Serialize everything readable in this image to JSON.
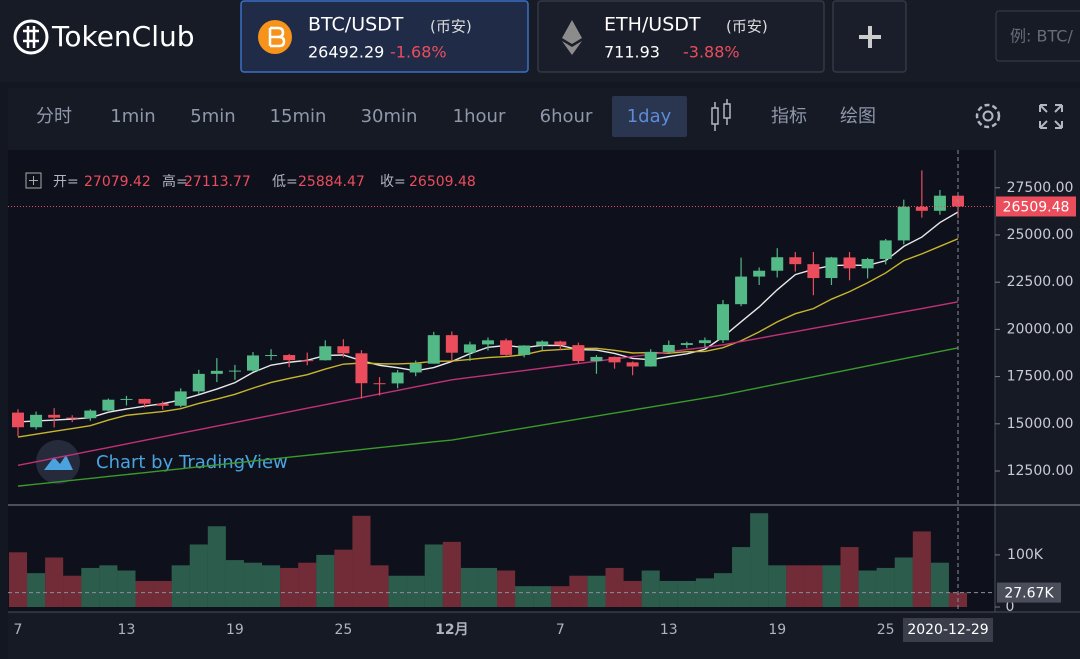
{
  "header": {
    "logo": "TokenClub",
    "tabs": [
      {
        "pair": "BTC/USDT",
        "exchange": "(币安)",
        "price": "26492.29",
        "change": "-1.68%"
      },
      {
        "pair": "ETH/USDT",
        "exchange": "(币安)",
        "price": "711.93",
        "change": "-3.88%"
      }
    ],
    "search_placeholder": "例: BTC/"
  },
  "toolbar": {
    "items": [
      "分时",
      "1min",
      "5min",
      "15min",
      "30min",
      "1hour",
      "6hour",
      "1day",
      "指标",
      "绘图"
    ],
    "active": "1day"
  },
  "chart_data": {
    "type": "candlestick",
    "ohlc_labels": [
      "开=",
      "高=",
      "低=",
      "收="
    ],
    "watermark": "Chart by TradingView",
    "up_color": "#53b987",
    "down_color": "#eb4d5c",
    "categories": [
      "7",
      null,
      null,
      null,
      null,
      null,
      "13",
      null,
      null,
      null,
      null,
      null,
      "19",
      null,
      null,
      null,
      null,
      null,
      "25",
      null,
      null,
      null,
      null,
      null,
      "12月",
      null,
      null,
      null,
      null,
      null,
      "7",
      null,
      null,
      null,
      null,
      null,
      "13",
      null,
      null,
      null,
      null,
      null,
      "19",
      null,
      null,
      null,
      null,
      null,
      "25",
      null,
      null,
      null,
      null
    ],
    "crosshair_label": "2020-12-29",
    "open": [
      15593,
      14818,
      15475,
      15328,
      15297,
      15701,
      16276,
      16317,
      16068,
      15955,
      16716,
      17645,
      17804,
      17817,
      18621,
      18642,
      18370,
      18365,
      19107,
      18732,
      17150,
      17139,
      17719,
      18185,
      19695,
      18765,
      19205,
      19422,
      18650,
      19147,
      19359,
      19166,
      18324,
      18541,
      18254,
      18036,
      18808,
      19175,
      19273,
      19426,
      21335,
      22797,
      23107,
      23821,
      23455,
      22719,
      23810,
      23232,
      23729,
      24712,
      26493,
      26281,
      27079.42
    ],
    "high": [
      15770,
      15650,
      15830,
      15450,
      15770,
      16340,
      16480,
      16330,
      16180,
      16880,
      17860,
      18480,
      18120,
      18800,
      18950,
      18700,
      18770,
      19420,
      19480,
      18900,
      17470,
      17850,
      18350,
      19870,
      19890,
      19350,
      19570,
      19520,
      19160,
      19420,
      19400,
      19300,
      18640,
      18560,
      18300,
      18950,
      19410,
      19350,
      19570,
      21560,
      23800,
      23280,
      24300,
      24100,
      24100,
      23840,
      24100,
      23790,
      24790,
      26870,
      28420,
      27380,
      27113.77
    ],
    "low": [
      14340,
      14700,
      14810,
      15090,
      15160,
      15680,
      15970,
      15850,
      15750,
      15880,
      16560,
      17210,
      17330,
      17740,
      18370,
      18000,
      18100,
      18350,
      18520,
      16340,
      16500,
      16880,
      17520,
      18180,
      18330,
      18330,
      18880,
      18600,
      18520,
      18900,
      18910,
      18200,
      17650,
      17920,
      17570,
      18020,
      18700,
      19000,
      19060,
      19280,
      21230,
      22350,
      22750,
      23060,
      21810,
      22350,
      22600,
      22700,
      23440,
      24500,
      25920,
      26070,
      25884.47
    ],
    "close": [
      14818,
      15475,
      15328,
      15297,
      15701,
      16276,
      16317,
      16068,
      15955,
      16716,
      17645,
      17804,
      17817,
      18621,
      18642,
      18370,
      18365,
      19107,
      18732,
      17150,
      17139,
      17719,
      18185,
      19695,
      18765,
      19205,
      19422,
      18650,
      19147,
      19359,
      19166,
      18324,
      18541,
      18254,
      18036,
      18808,
      19175,
      19273,
      19426,
      21335,
      22797,
      23107,
      23821,
      23455,
      22719,
      23810,
      23232,
      23729,
      24712,
      26493,
      26281,
      27079.42,
      26509.48
    ],
    "volume": [
      105000,
      65000,
      95000,
      60000,
      75000,
      80000,
      70000,
      50000,
      50000,
      80000,
      120000,
      155000,
      90000,
      85000,
      80000,
      75000,
      85000,
      100000,
      110000,
      175000,
      80000,
      60000,
      60000,
      120000,
      125000,
      75000,
      75000,
      70000,
      40000,
      40000,
      40000,
      60000,
      60000,
      75000,
      50000,
      70000,
      50000,
      50000,
      55000,
      65000,
      115000,
      180000,
      80000,
      80000,
      80000,
      80000,
      115000,
      70000,
      75000,
      95000,
      145000,
      85000,
      27670
    ],
    "last_volume_label": {
      "value": 27670,
      "label": "27.67K"
    },
    "moving_averages": [
      {
        "color": "#e8e8e8",
        "values": [
          15100,
          15150,
          15200,
          15250,
          15324,
          15615,
          15784,
          15932,
          16063,
          16266,
          16540,
          16838,
          17181,
          17721,
          18106,
          18260,
          18363,
          18621,
          18643,
          18345,
          18099,
          17969,
          17806,
          17978,
          18301,
          18714,
          19054,
          19147,
          19038,
          19157,
          19149,
          18929,
          18907,
          18729,
          18464,
          18393,
          18563,
          18709,
          18944,
          19603,
          20401,
          21188,
          22097,
          22903,
          23180,
          23382,
          23409,
          23389,
          23640,
          24395,
          24889,
          25659,
          26215
        ]
      },
      {
        "color": "#c9b52c",
        "values": [
          14300,
          14450,
          14600,
          14750,
          14900,
          15200,
          15450,
          15550,
          15650,
          15800,
          16080,
          16310,
          16560,
          16890,
          17190,
          17400,
          17600,
          17900,
          18160,
          18220,
          18180,
          18170,
          18210,
          18310,
          18320,
          18410,
          18510,
          18560,
          18660,
          18870,
          18930,
          18990,
          19000,
          18890,
          18750,
          18770,
          18740,
          18820,
          18830,
          19030,
          19400,
          19870,
          20400,
          20830,
          21100,
          21600,
          22000,
          22470,
          22990,
          23640,
          24000,
          24400,
          24800
        ]
      },
      {
        "color": "#c2307a",
        "values": [
          12800,
          12989,
          13178,
          13367,
          13556,
          13745,
          13934,
          14123,
          14312,
          14501,
          14690,
          14879,
          15068,
          15257,
          15446,
          15635,
          15824,
          16013,
          16202,
          16391,
          16580,
          16769,
          16958,
          17147,
          17330,
          17453,
          17576,
          17699,
          17822,
          17945,
          18068,
          18191,
          18314,
          18437,
          18560,
          18683,
          18806,
          18929,
          19052,
          19180,
          19355,
          19530,
          19705,
          19880,
          20055,
          20230,
          20405,
          20580,
          20755,
          20930,
          21105,
          21280,
          21460
        ]
      },
      {
        "color": "#3a9a2c",
        "values": [
          11700,
          11802,
          11904,
          12006,
          12108,
          12210,
          12312,
          12414,
          12516,
          12618,
          12720,
          12822,
          12924,
          13026,
          13128,
          13230,
          13332,
          13434,
          13536,
          13638,
          13740,
          13842,
          13944,
          14046,
          14140,
          14299,
          14458,
          14617,
          14776,
          14935,
          15094,
          15253,
          15412,
          15571,
          15730,
          15889,
          16048,
          16207,
          16366,
          16530,
          16722,
          16914,
          17106,
          17298,
          17490,
          17682,
          17874,
          18066,
          18258,
          18450,
          18642,
          18834,
          19020
        ]
      }
    ],
    "ylim": [
      10700,
      29500
    ],
    "yticks": [
      {
        "value": 12500,
        "label": "12500.00"
      },
      {
        "value": 15000,
        "label": "15000.00"
      },
      {
        "value": 17500,
        "label": "17500.00"
      },
      {
        "value": 20000,
        "label": "20000.00"
      },
      {
        "value": 22500,
        "label": "22500.00"
      },
      {
        "value": 25000,
        "label": "25000.00"
      },
      {
        "value": 27500,
        "label": "27500.00"
      }
    ],
    "volume_ylim": [
      0,
      190000
    ],
    "volume_ticks": [
      0,
      {
        "value": 100000,
        "label": "100K"
      }
    ],
    "grid": false
  }
}
